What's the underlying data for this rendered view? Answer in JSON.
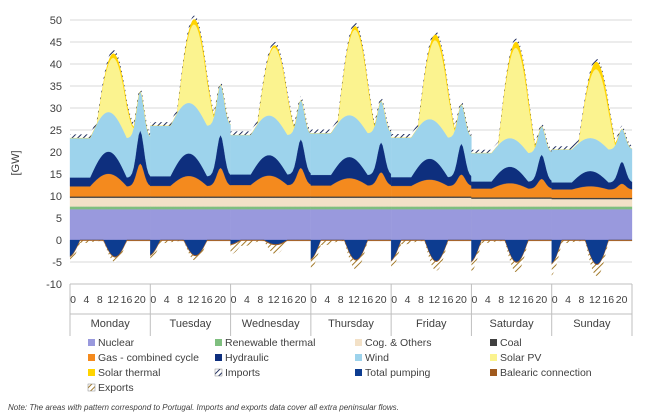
{
  "chart_data": {
    "type": "area",
    "stacked": true,
    "ylabel": "[GW]",
    "ylim": [
      -10,
      50
    ],
    "y_ticks": [
      -10,
      -5,
      0,
      5,
      10,
      15,
      20,
      25,
      30,
      35,
      40,
      45,
      50
    ],
    "grid": true,
    "days": [
      "Monday",
      "Tuesday",
      "Wednesday",
      "Thursday",
      "Friday",
      "Saturday",
      "Sunday"
    ],
    "hour_ticks": [
      "0",
      "4",
      "8",
      "12",
      "16",
      "20"
    ],
    "hours_per_day": 24,
    "series": [
      {
        "name": "Nuclear",
        "color": "#9999dd",
        "pattern": false,
        "values": [
          7.0,
          7.0,
          7.0,
          7.0,
          7.0,
          7.0,
          7.0
        ]
      },
      {
        "name": "Renewable thermal",
        "color": "#7fbf7f",
        "pattern": false,
        "values": [
          0.6,
          0.6,
          0.6,
          0.6,
          0.6,
          0.6,
          0.6
        ]
      },
      {
        "name": "Cog. & Others",
        "color": "#f3e1c7",
        "pattern": false,
        "values": [
          2.0,
          2.0,
          2.0,
          2.0,
          2.0,
          1.8,
          1.7
        ]
      },
      {
        "name": "Coal",
        "color": "#404040",
        "pattern": false,
        "values": [
          0.3,
          0.3,
          0.3,
          0.3,
          0.3,
          0.3,
          0.3
        ]
      },
      {
        "name": "Gas - combined cycle",
        "color": "#f48a1e",
        "pattern": false,
        "night": [
          2.3,
          2.4,
          2.6,
          2.5,
          2.4,
          2.0,
          1.9
        ],
        "peak": [
          7.5,
          6.5,
          6.5,
          5.5,
          5.0,
          4.2,
          3.2
        ]
      },
      {
        "name": "Hydraulic",
        "color": "#0e2f7e",
        "pattern": false,
        "night": [
          2.0,
          2.2,
          2.4,
          2.4,
          2.0,
          1.6,
          1.6
        ],
        "peak": [
          7.5,
          7.5,
          6.5,
          6.8,
          7.0,
          5.5,
          5.0
        ]
      },
      {
        "name": "Wind",
        "color": "#9dd3ec",
        "pattern": false,
        "values": [
          9.0,
          11.5,
          9.0,
          9.5,
          9.0,
          6.5,
          7.5
        ]
      },
      {
        "name": "Solar PV",
        "color": "#fbf38f",
        "pattern": false,
        "peak": [
          13.0,
          18.5,
          16.0,
          20.0,
          18.5,
          21.0,
          16.0
        ]
      },
      {
        "name": "Solar thermal",
        "color": "#ffd400",
        "pattern": false,
        "peak": [
          1.1,
          1.3,
          0.6,
          0.9,
          1.4,
          1.5,
          1.8
        ]
      },
      {
        "name": "Imports",
        "color": "#c9cee0",
        "pattern": true,
        "values": [
          0.8,
          0.8,
          0.8,
          0.8,
          0.8,
          0.7,
          0.7
        ]
      },
      {
        "name": "Total pumping",
        "color": "#0d3c90",
        "pattern": false,
        "peak": [
          -3.8,
          -3.5,
          -1.0,
          -4.5,
          -4.8,
          -5.0,
          -5.5
        ]
      },
      {
        "name": "Balearic connection",
        "color": "#a05a1e",
        "pattern": false,
        "values": [
          -0.2,
          -0.2,
          -0.2,
          -0.2,
          -0.2,
          -0.2,
          -0.2
        ]
      },
      {
        "name": "Exports",
        "color": "#b8913b",
        "pattern": true,
        "night": [
          -0.5,
          -0.5,
          -1.2,
          -1.0,
          -0.8,
          -0.5,
          -0.5
        ],
        "peak": [
          -1.0,
          -1.0,
          -2.0,
          -2.0,
          -2.0,
          -2.2,
          -2.5
        ]
      }
    ]
  },
  "note": "Note: The areas with pattern correspond to Portugal. Imports and exports data cover all extra peninsular flows."
}
